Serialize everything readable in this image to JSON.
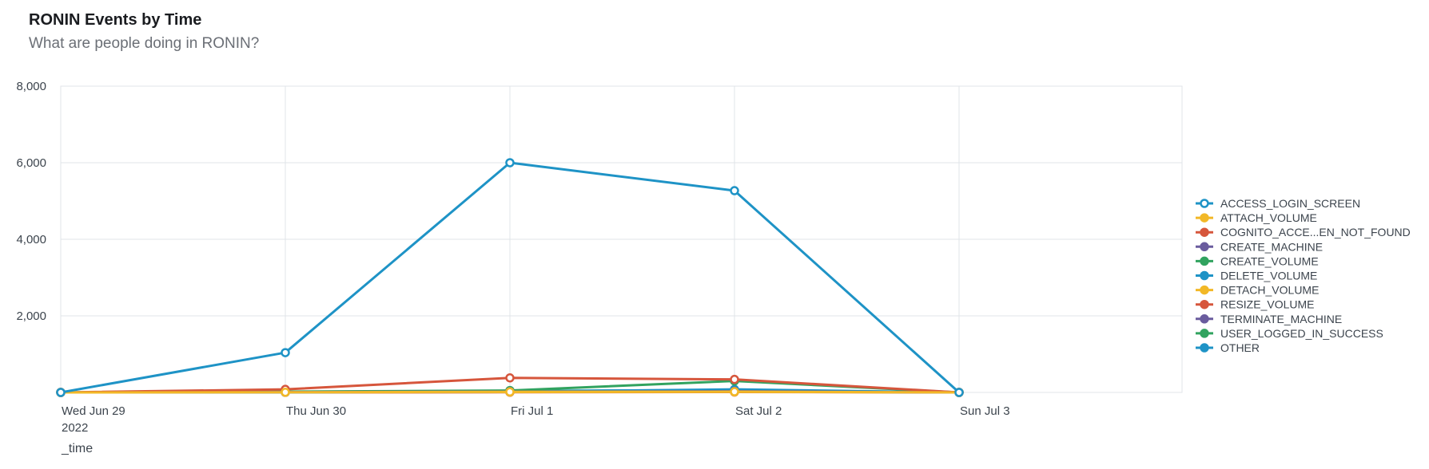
{
  "panel": {
    "title": "RONIN Events by Time",
    "subtitle": "What are people doing in RONIN?"
  },
  "chart_data": {
    "type": "line",
    "title": "RONIN Events by Time",
    "subtitle": "What are people doing in RONIN?",
    "xlabel": "_time",
    "ylabel": "",
    "ylim": [
      0,
      8000
    ],
    "yticks": [
      "8,000",
      "6,000",
      "4,000",
      "2,000"
    ],
    "yticks_values": [
      8000,
      6000,
      4000,
      2000
    ],
    "categories": [
      "Wed Jun 29",
      "Thu Jun 30",
      "Fri Jul 1",
      "Sat Jul 2",
      "Sun Jul 3"
    ],
    "first_tick_year": "2022",
    "grid": true,
    "legend_position": "right",
    "series": [
      {
        "name": "ACCESS_LOGIN_SCREEN",
        "color": "#1e93c6",
        "values": [
          0,
          1040,
          6000,
          5270,
          0
        ]
      },
      {
        "name": "ATTACH_VOLUME",
        "color": "#f2b827",
        "values": [
          0,
          5,
          15,
          20,
          0
        ]
      },
      {
        "name": "COGNITO_ACCE...EN_NOT_FOUND",
        "color": "#d6563c",
        "values": [
          0,
          80,
          380,
          340,
          0
        ]
      },
      {
        "name": "CREATE_MACHINE",
        "color": "#6a5c9e",
        "values": [
          0,
          10,
          20,
          30,
          0
        ]
      },
      {
        "name": "CREATE_VOLUME",
        "color": "#31a35f",
        "values": [
          0,
          20,
          50,
          300,
          0
        ]
      },
      {
        "name": "DELETE_VOLUME",
        "color": "#1e93c6",
        "values": [
          0,
          5,
          20,
          80,
          0
        ]
      },
      {
        "name": "DETACH_VOLUME",
        "color": "#f2b827",
        "values": [
          0,
          5,
          10,
          15,
          0
        ]
      },
      {
        "name": "RESIZE_VOLUME",
        "color": "#d6563c",
        "values": [
          0,
          2,
          5,
          10,
          0
        ]
      },
      {
        "name": "TERMINATE_MACHINE",
        "color": "#6a5c9e",
        "values": [
          0,
          5,
          10,
          25,
          0
        ]
      },
      {
        "name": "USER_LOGGED_IN_SUCCESS",
        "color": "#31a35f",
        "values": [
          0,
          10,
          40,
          50,
          0
        ]
      },
      {
        "name": "OTHER",
        "color": "#1e93c6",
        "values": [
          0,
          15,
          40,
          60,
          0
        ]
      }
    ]
  }
}
